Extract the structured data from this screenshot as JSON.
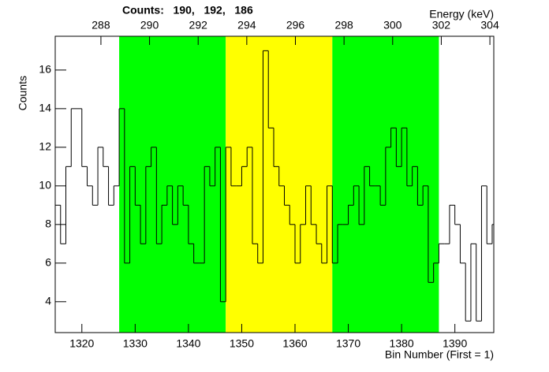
{
  "chart_data": {
    "type": "histogram",
    "title": "Counts:   190,   192,   186",
    "x_label": "Bin Number (First = 1)",
    "y_label": "Counts",
    "x2_label": "Energy (keV)",
    "bins": [
      1315,
      1316,
      1317,
      1318,
      1319,
      1320,
      1321,
      1322,
      1323,
      1324,
      1325,
      1326,
      1327,
      1328,
      1329,
      1330,
      1331,
      1332,
      1333,
      1334,
      1335,
      1336,
      1337,
      1338,
      1339,
      1340,
      1341,
      1342,
      1343,
      1344,
      1345,
      1346,
      1347,
      1348,
      1349,
      1350,
      1351,
      1352,
      1353,
      1354,
      1355,
      1356,
      1357,
      1358,
      1359,
      1360,
      1361,
      1362,
      1363,
      1364,
      1365,
      1366,
      1367,
      1368,
      1369,
      1370,
      1371,
      1372,
      1373,
      1374,
      1375,
      1376,
      1377,
      1378,
      1379,
      1380,
      1381,
      1382,
      1383,
      1384,
      1385,
      1386,
      1387,
      1388,
      1389,
      1390,
      1391,
      1392,
      1393,
      1394,
      1395,
      1396,
      1397,
      1398
    ],
    "values": [
      9,
      7,
      11,
      14,
      14,
      11,
      10,
      9,
      12,
      11,
      9,
      10,
      14,
      6,
      11,
      9,
      7,
      11,
      12,
      7,
      9,
      10,
      8,
      10,
      9,
      7,
      6,
      6,
      11,
      10,
      12,
      4,
      12,
      10,
      10,
      11,
      12,
      7,
      6,
      17,
      13,
      11,
      10,
      9,
      8,
      6,
      8,
      10,
      8,
      7,
      6,
      10,
      6,
      8,
      8,
      9,
      10,
      8,
      11,
      10,
      10,
      9,
      12,
      13,
      11,
      13,
      10,
      11,
      9,
      10,
      5,
      6,
      7,
      7,
      9,
      8,
      6,
      3,
      7,
      3,
      10,
      7,
      8
    ],
    "color": "#000000",
    "regions": [
      {
        "from": 1327,
        "to": 1347,
        "color": "#00ff00"
      },
      {
        "from": 1347,
        "to": 1367,
        "color": "#ffff00"
      },
      {
        "from": 1367,
        "to": 1387,
        "color": "#00ff00"
      }
    ],
    "xlim": [
      1315,
      1397.3
    ],
    "ylim": [
      2.4,
      17.75
    ],
    "xticks": [
      1320,
      1330,
      1340,
      1350,
      1360,
      1370,
      1380,
      1390
    ],
    "yticks": [
      4,
      6,
      8,
      10,
      12,
      14,
      16
    ],
    "x2lim": [
      286.12,
      304.16
    ],
    "x2ticks": [
      288,
      290,
      292,
      294,
      296,
      298,
      300,
      302,
      304
    ]
  }
}
